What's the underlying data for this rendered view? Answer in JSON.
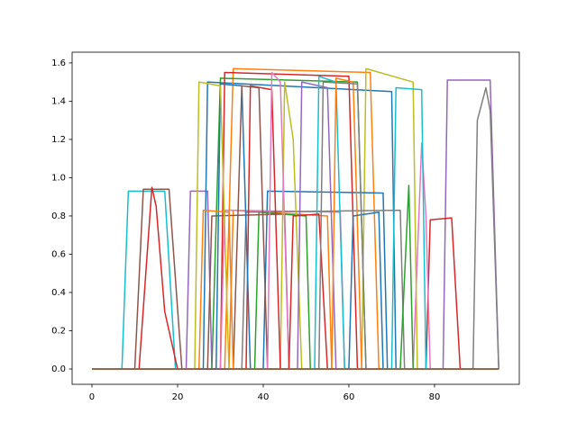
{
  "chart_data": {
    "type": "line",
    "xlim": [
      -4.63,
      99.8
    ],
    "ylim": [
      -0.08,
      1.656
    ],
    "xticks": [
      0,
      20,
      40,
      60,
      80
    ],
    "yticks": [
      {
        "value": 0,
        "label": "0.0"
      },
      0.2,
      0.4,
      0.6,
      0.8,
      {
        "value": 1,
        "label": "1.0"
      },
      1.2,
      1.4,
      1.6
    ],
    "series": [
      {
        "color": "#17becf",
        "x": [
          0,
          7,
          8.5,
          17,
          19.5,
          95
        ],
        "values": [
          0,
          0,
          0.93,
          0.93,
          0,
          0
        ]
      },
      {
        "color": "#8c564b",
        "x": [
          0,
          10,
          12,
          18,
          21,
          95
        ],
        "values": [
          0,
          0,
          0.94,
          0.94,
          0,
          0
        ]
      },
      {
        "color": "#d62728",
        "x": [
          0,
          11,
          14,
          15,
          17,
          20,
          95
        ],
        "values": [
          0,
          0,
          0.95,
          0.85,
          0.3,
          0,
          0
        ]
      },
      {
        "color": "#9467bd",
        "x": [
          0,
          22,
          23,
          27,
          28,
          95
        ],
        "values": [
          0,
          0,
          0.93,
          0.93,
          0,
          0
        ]
      },
      {
        "color": "#1f77b4",
        "x": [
          0,
          26,
          27,
          70,
          71,
          95
        ],
        "values": [
          0,
          0,
          1.5,
          1.45,
          0,
          0
        ]
      },
      {
        "color": "#ff7f0e",
        "x": [
          0,
          31,
          33,
          65,
          67,
          95
        ],
        "values": [
          0,
          0,
          1.57,
          1.55,
          0,
          0
        ]
      },
      {
        "color": "#2ca02c",
        "x": [
          0,
          28,
          30,
          62,
          64,
          95
        ],
        "values": [
          0,
          0,
          1.52,
          1.5,
          0,
          0
        ]
      },
      {
        "color": "#d62728",
        "x": [
          0,
          30,
          31,
          60,
          62,
          95
        ],
        "values": [
          0,
          0,
          1.55,
          1.53,
          0,
          0
        ]
      },
      {
        "color": "#9467bd",
        "x": [
          0,
          82,
          83,
          93,
          95
        ],
        "values": [
          0,
          0,
          1.51,
          1.51,
          0
        ]
      },
      {
        "color": "#7f7f7f",
        "x": [
          0,
          89,
          90,
          92,
          93,
          95
        ],
        "values": [
          0,
          0,
          1.3,
          1.47,
          1.35,
          0
        ]
      },
      {
        "color": "#d62728",
        "x": [
          0,
          78,
          79,
          84,
          86,
          95
        ],
        "values": [
          0,
          0,
          0.78,
          0.79,
          0,
          0
        ]
      },
      {
        "color": "#e377c2",
        "x": [
          0,
          75,
          77,
          78,
          79,
          95
        ],
        "values": [
          0,
          0,
          1.18,
          0.8,
          0,
          0
        ]
      },
      {
        "color": "#bcbd22",
        "x": [
          0,
          63,
          64,
          75,
          76,
          95
        ],
        "values": [
          0,
          0,
          1.57,
          1.5,
          0,
          0
        ]
      },
      {
        "color": "#17becf",
        "x": [
          0,
          70,
          71,
          77,
          78,
          95
        ],
        "values": [
          0,
          0,
          1.47,
          1.46,
          0,
          0
        ]
      },
      {
        "color": "#1f77b4",
        "x": [
          0,
          40,
          41,
          68,
          69,
          95
        ],
        "values": [
          0,
          0,
          0.93,
          0.92,
          0,
          0
        ]
      },
      {
        "color": "#ff7f0e",
        "x": [
          0,
          32,
          33,
          55,
          56,
          95
        ],
        "values": [
          0,
          0,
          0.83,
          0.8,
          0,
          0
        ]
      },
      {
        "color": "#2ca02c",
        "x": [
          0,
          38,
          39,
          50,
          51,
          95
        ],
        "values": [
          0,
          0,
          0.82,
          0.8,
          0,
          0
        ]
      },
      {
        "color": "#8c564b",
        "x": [
          0,
          27,
          28,
          45,
          46,
          95
        ],
        "values": [
          0,
          0,
          0.8,
          0.81,
          0,
          0
        ]
      },
      {
        "color": "#e377c2",
        "x": [
          0,
          30,
          31,
          58,
          59,
          95
        ],
        "values": [
          0,
          0,
          0.83,
          0.82,
          0,
          0
        ]
      },
      {
        "color": "#7f7f7f",
        "x": [
          0,
          35,
          36,
          72,
          73,
          95
        ],
        "values": [
          0,
          0,
          0.82,
          0.83,
          0,
          0
        ]
      },
      {
        "color": "#bcbd22",
        "x": [
          0,
          44,
          45,
          47,
          49,
          95
        ],
        "values": [
          0,
          0,
          1.5,
          1.2,
          0,
          0
        ]
      },
      {
        "color": "#d62728",
        "x": [
          0,
          36,
          37,
          42,
          44,
          95
        ],
        "values": [
          0,
          0,
          1.48,
          1.46,
          0,
          0
        ]
      },
      {
        "color": "#9467bd",
        "x": [
          0,
          48,
          49,
          55,
          57,
          95
        ],
        "values": [
          0,
          0,
          1.5,
          1.47,
          0,
          0
        ]
      },
      {
        "color": "#17becf",
        "x": [
          0,
          52,
          53,
          57,
          59,
          95
        ],
        "values": [
          0,
          0,
          1.53,
          1.5,
          0,
          0
        ]
      },
      {
        "color": "#1f77b4",
        "x": [
          0,
          29,
          30,
          35,
          37,
          95
        ],
        "values": [
          0,
          0,
          1.49,
          1.48,
          0,
          0
        ]
      },
      {
        "color": "#ff7f0e",
        "x": [
          0,
          56,
          57,
          61,
          63,
          95
        ],
        "values": [
          0,
          0,
          1.52,
          1.5,
          0,
          0
        ]
      },
      {
        "color": "#2ca02c",
        "x": [
          0,
          72,
          74,
          75,
          95
        ],
        "values": [
          0,
          0,
          0.96,
          0,
          0
        ]
      },
      {
        "color": "#8c564b",
        "x": [
          0,
          33,
          35,
          39,
          41,
          95
        ],
        "values": [
          0,
          0,
          1.48,
          1.47,
          0,
          0
        ]
      },
      {
        "color": "#e377c2",
        "x": [
          0,
          41,
          42,
          44,
          46,
          95
        ],
        "values": [
          0,
          0,
          1.55,
          1.5,
          0,
          0
        ]
      },
      {
        "color": "#d62728",
        "x": [
          0,
          46,
          47,
          53,
          55,
          95
        ],
        "values": [
          0,
          0,
          0.8,
          0.81,
          0,
          0
        ]
      },
      {
        "color": "#1f77b4",
        "x": [
          0,
          60,
          61,
          67,
          68,
          95
        ],
        "values": [
          0,
          0,
          0.8,
          0.82,
          0,
          0
        ]
      },
      {
        "color": "#ff7f0e",
        "x": [
          0,
          25,
          26,
          32,
          33,
          95
        ],
        "values": [
          0,
          0,
          0.83,
          0.82,
          0,
          0
        ]
      },
      {
        "color": "#7f7f7f",
        "x": [
          0,
          53,
          54,
          62,
          64,
          95
        ],
        "values": [
          0,
          0,
          1.5,
          1.49,
          0,
          0
        ]
      },
      {
        "color": "#bcbd22",
        "x": [
          0,
          24,
          25,
          30,
          32,
          95
        ],
        "values": [
          0,
          0,
          1.5,
          1.48,
          0,
          0
        ]
      },
      {
        "color": "#8c564b",
        "x": [
          0,
          95
        ],
        "values": [
          0,
          0
        ]
      }
    ]
  }
}
